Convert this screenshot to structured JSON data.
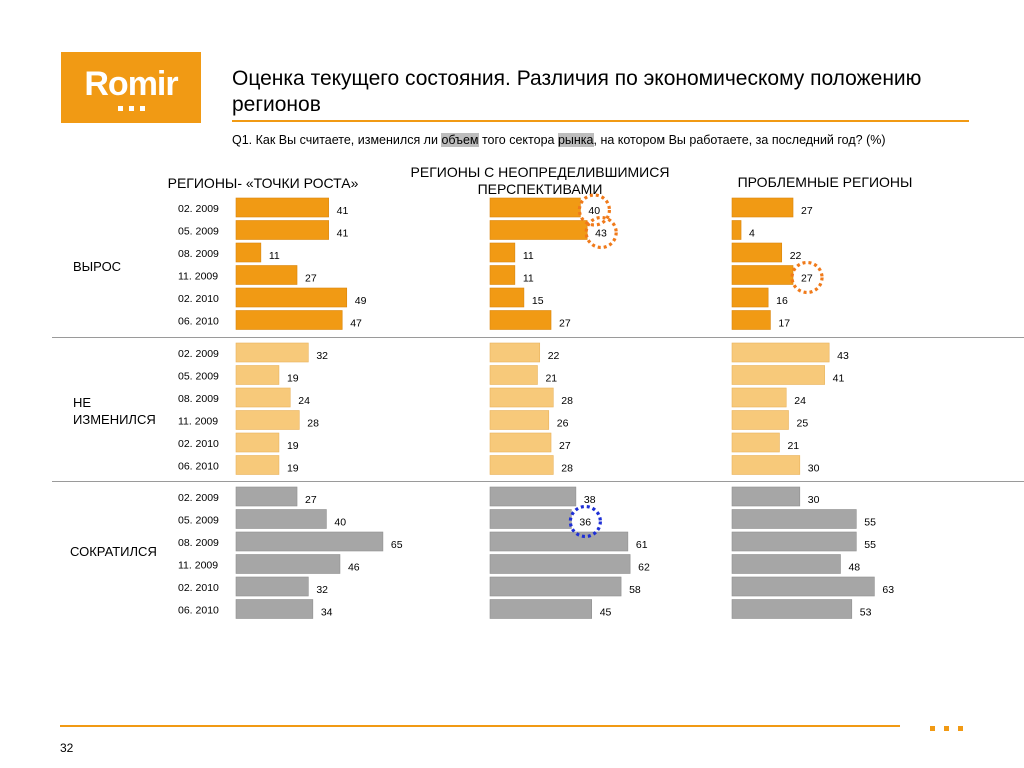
{
  "logo": {
    "text": "Romir"
  },
  "title": "Оценка текущего состояния. Различия по экономическому положению регионов",
  "question": {
    "prefix": "Q1. Как Вы считаете, изменился ли ",
    "word1": "объем",
    "middle": " того сектора ",
    "word2": "рынка",
    "suffix": ", на котором Вы работаете, за последний год? (%)"
  },
  "columns": [
    "РЕГИОНЫ- «ТОЧКИ РОСТА»",
    "РЕГИОНЫ С НЕОПРЕДЕЛИВШИМИСЯ ПЕРСПЕКТИВАМИ",
    "ПРОБЛЕМНЫЕ РЕГИОНЫ"
  ],
  "rows": [
    "ВЫРОС",
    "НЕ ИЗМЕНИЛСЯ",
    "СОКРАТИЛСЯ"
  ],
  "page_number": "32",
  "colors": {
    "accent": "#f19a14",
    "grew": "#f19a14",
    "unchanged": "#f7c97a",
    "shrank": "#a6a6a6",
    "circle_orange": "#f07a1a",
    "circle_blue": "#1e2fd6"
  },
  "chart_data": {
    "type": "bar",
    "orientation": "horizontal",
    "categories": [
      "02. 2009",
      "05. 2009",
      "08. 2009",
      "11. 2009",
      "02. 2010",
      "06. 2010"
    ],
    "xlim": [
      0,
      100
    ],
    "series": [
      {
        "name": "РЕГИОНЫ- «ТОЧКИ РОСТА» / ВЫРОС",
        "values": [
          41,
          41,
          11,
          27,
          49,
          47
        ]
      },
      {
        "name": "РЕГИОНЫ- «ТОЧКИ РОСТА» / НЕ ИЗМЕНИЛСЯ",
        "values": [
          32,
          19,
          24,
          28,
          19,
          19
        ]
      },
      {
        "name": "РЕГИОНЫ- «ТОЧКИ РОСТА» / СОКРАТИЛСЯ",
        "values": [
          27,
          40,
          65,
          46,
          32,
          34
        ]
      },
      {
        "name": "РЕГИОНЫ С НЕОПРЕДЕЛИВШИМИСЯ ПЕРСПЕКТИВАМИ / ВЫРОС",
        "values": [
          40,
          43,
          11,
          11,
          15,
          27
        ]
      },
      {
        "name": "РЕГИОНЫ С НЕОПРЕДЕЛИВШИМИСЯ ПЕРСПЕКТИВАМИ / НЕ ИЗМЕНИЛСЯ",
        "values": [
          22,
          21,
          28,
          26,
          27,
          28
        ]
      },
      {
        "name": "РЕГИОНЫ С НЕОПРЕДЕЛИВШИМИСЯ ПЕРСПЕКТИВАМИ / СОКРАТИЛСЯ",
        "values": [
          38,
          36,
          61,
          62,
          58,
          45
        ]
      },
      {
        "name": "ПРОБЛЕМНЫЕ РЕГИОНЫ / ВЫРОС",
        "values": [
          27,
          4,
          22,
          27,
          16,
          17
        ]
      },
      {
        "name": "ПРОБЛЕМНЫЕ РЕГИОНЫ / НЕ ИЗМЕНИЛСЯ",
        "values": [
          43,
          41,
          24,
          25,
          21,
          30
        ]
      },
      {
        "name": "ПРОБЛЕМНЫЕ РЕГИОНЫ / СОКРАТИЛСЯ",
        "values": [
          30,
          55,
          55,
          48,
          63,
          53
        ]
      }
    ],
    "annotations": [
      {
        "series": "РЕГИОНЫ С НЕОПРЕДЕЛИВШИМИСЯ ПЕРСПЕКТИВАМИ / ВЫРОС",
        "category": "02. 2009",
        "style": "dotted-circle",
        "color": "orange"
      },
      {
        "series": "РЕГИОНЫ С НЕОПРЕДЕЛИВШИМИСЯ ПЕРСПЕКТИВАМИ / ВЫРОС",
        "category": "05. 2009",
        "style": "dotted-circle",
        "color": "orange"
      },
      {
        "series": "ПРОБЛЕМНЫЕ РЕГИОНЫ / ВЫРОС",
        "category": "11. 2009",
        "style": "dotted-circle",
        "color": "orange"
      },
      {
        "series": "РЕГИОНЫ С НЕОПРЕДЕЛИВШИМИСЯ ПЕРСПЕКТИВАМИ / СОКРАТИЛСЯ",
        "category": "05. 2009",
        "style": "dotted-circle",
        "color": "blue"
      }
    ]
  }
}
